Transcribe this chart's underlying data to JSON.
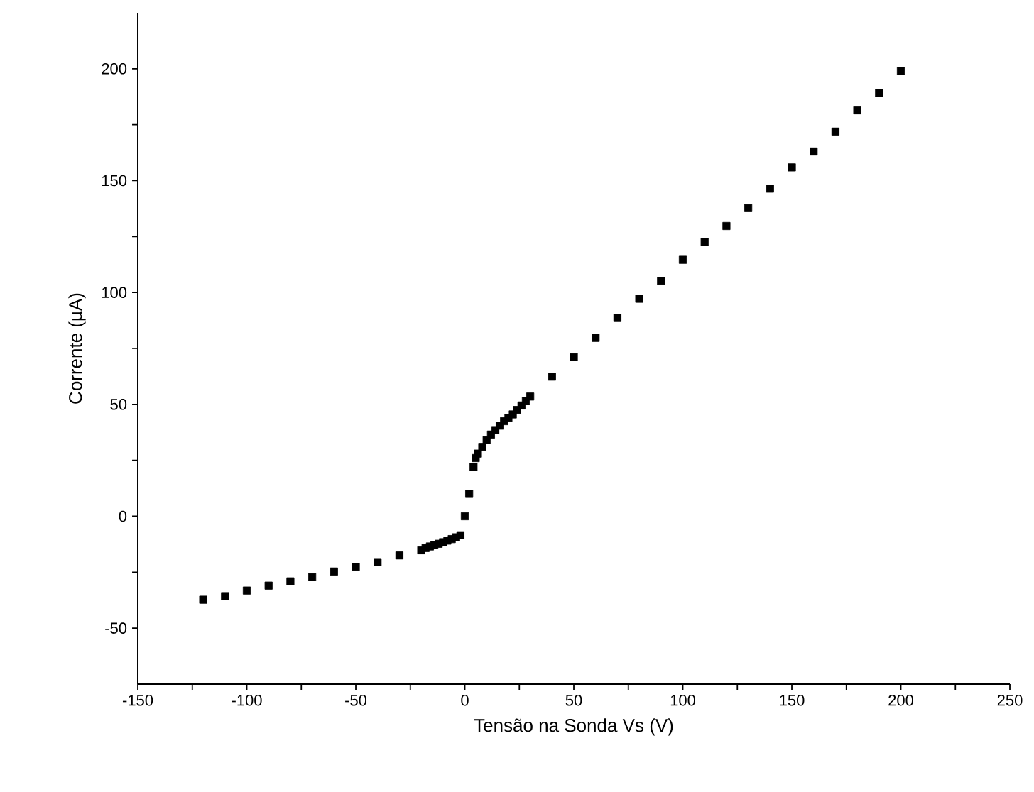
{
  "chart_data": {
    "type": "scatter",
    "xlabel": "Tensão na Sonda Vs (V)",
    "ylabel": "Corrente (µA)",
    "marker": "square",
    "xlim": [
      -150,
      250
    ],
    "ylim": [
      -75,
      225
    ],
    "xticks": [
      -150,
      {
        "value": -125,
        "label": null
      },
      -100,
      {
        "value": -75,
        "label": null
      },
      -50,
      {
        "value": -25,
        "label": null
      },
      0,
      {
        "value": 25,
        "label": null
      },
      50,
      {
        "value": 75,
        "label": null
      },
      100,
      {
        "value": 125,
        "label": null
      },
      150,
      {
        "value": 175,
        "label": null
      },
      200,
      {
        "value": 225,
        "label": null
      },
      250
    ],
    "yticks": [
      -50,
      {
        "value": -25,
        "label": null
      },
      0,
      {
        "value": 25,
        "label": null
      },
      50,
      {
        "value": 75,
        "label": null
      },
      100,
      {
        "value": 125,
        "label": null
      },
      150,
      {
        "value": 175,
        "label": null
      },
      200
    ],
    "series": [
      {
        "color": "#000000",
        "x": [
          -120,
          -110,
          -100,
          -90,
          -80,
          -70,
          -60,
          -50,
          -40,
          -30,
          -20,
          -18,
          -16,
          -14,
          -12,
          -10,
          -8,
          -6,
          -4,
          -2,
          0,
          2,
          4,
          5,
          6,
          8,
          10,
          12,
          14,
          16,
          18,
          20,
          22,
          24,
          26,
          28,
          30,
          40,
          50,
          60,
          70,
          80,
          90,
          100,
          110,
          120,
          130,
          140,
          150,
          160,
          170,
          180,
          190,
          200
        ],
        "values": [
          -37.3,
          -35.7,
          -33.2,
          -31,
          -29.1,
          -27.2,
          -24.7,
          -22.6,
          -20.5,
          -17.5,
          -15.2,
          -14.2,
          -13.5,
          -12.9,
          -12.3,
          -11.6,
          -10.9,
          -10.2,
          -9.4,
          -8.5,
          0,
          10,
          22,
          26,
          28,
          31,
          34,
          36.5,
          38.5,
          40.5,
          42.5,
          44,
          45.5,
          47.5,
          49.5,
          51.5,
          53.5,
          62.4,
          71.1,
          79.7,
          88.6,
          97.2,
          105.2,
          114.6,
          122.5,
          129.7,
          137.7,
          146.4,
          155.9,
          163,
          171.9,
          181.4,
          189.2,
          199
        ]
      }
    ]
  }
}
